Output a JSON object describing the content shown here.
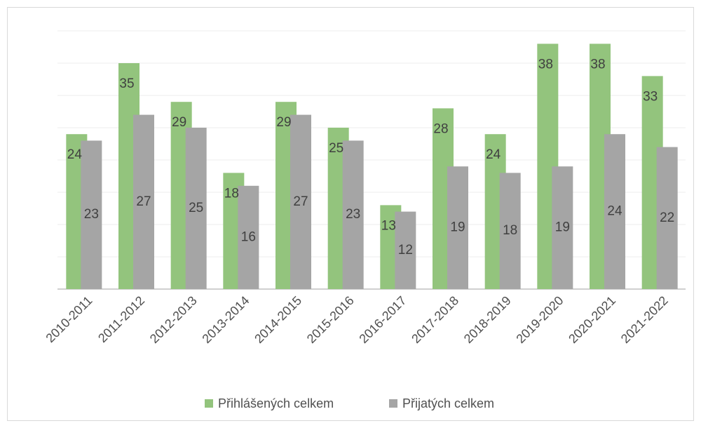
{
  "chart_data": {
    "type": "bar",
    "categories": [
      "2010-2011",
      "2011-2012",
      "2012-2013",
      "2013-2014",
      "2014-2015",
      "2015-2016",
      "2016-2017",
      "2017-2018",
      "2018-2019",
      "2019-2020",
      "2020-2021",
      "2021-2022"
    ],
    "series": [
      {
        "name": "Přihlášených celkem",
        "color": "#93c47d",
        "values": [
          24,
          35,
          29,
          18,
          29,
          25,
          13,
          28,
          24,
          38,
          38,
          33
        ]
      },
      {
        "name": "Přijatých celkem",
        "color": "#a5a5a5",
        "values": [
          23,
          27,
          25,
          16,
          27,
          23,
          12,
          19,
          18,
          19,
          24,
          22
        ]
      }
    ],
    "ylim": [
      0,
      40
    ],
    "yticks": [
      0,
      5,
      10,
      15,
      20,
      25,
      30,
      35,
      40
    ],
    "grid": true,
    "legend": "bottom"
  }
}
